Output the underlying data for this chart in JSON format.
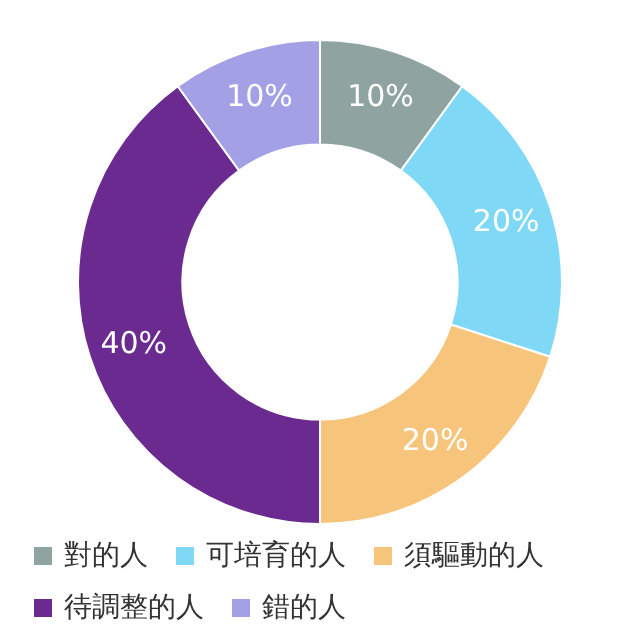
{
  "chart_data": {
    "type": "donut",
    "categories": [
      "對的人",
      "可培育的人",
      "須驅動的人",
      "待調整的人",
      "錯的人"
    ],
    "values": [
      10,
      20,
      20,
      40,
      10
    ],
    "colors": [
      "#8fa3a0",
      "#80d8f7",
      "#f7c47c",
      "#6b2a90",
      "#a3a0e6"
    ],
    "value_labels": [
      "10%",
      "20%",
      "20%",
      "40%",
      "10%"
    ],
    "legend": "bottom"
  }
}
